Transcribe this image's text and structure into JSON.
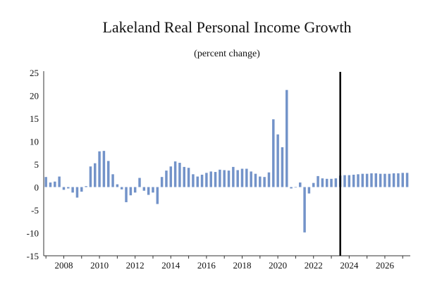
{
  "chart_data": {
    "type": "bar",
    "title": "Lakeland Real Personal Income Growth",
    "subtitle": "(percent change)",
    "xlabel": "",
    "ylabel": "",
    "ylim": [
      -15,
      25
    ],
    "yticks": [
      "25",
      "20",
      "15",
      "10",
      "5",
      "0",
      "-5",
      "-10",
      "-15"
    ],
    "xticks": [
      "2008",
      "2010",
      "2012",
      "2014",
      "2016",
      "2018",
      "2020",
      "2022",
      "2024",
      "2026"
    ],
    "x_start": 2007.0,
    "x_step": 0.25,
    "forecast_start": 2023.5,
    "bar_color": "#7393c9",
    "forecast_line_color": "#000000",
    "values": [
      2.2,
      1.0,
      1.2,
      2.3,
      -0.6,
      -0.3,
      -1.2,
      -2.3,
      -1.0,
      0.2,
      4.5,
      5.2,
      7.8,
      7.9,
      5.7,
      2.8,
      0.6,
      -0.5,
      -3.3,
      -1.8,
      -1.2,
      2.0,
      -0.8,
      -1.7,
      -1.2,
      -3.7,
      2.2,
      3.6,
      4.5,
      5.6,
      5.3,
      4.4,
      4.2,
      2.8,
      2.3,
      2.7,
      3.1,
      3.4,
      3.3,
      3.8,
      3.7,
      3.6,
      4.4,
      3.7,
      4.0,
      4.0,
      3.4,
      2.9,
      2.3,
      2.2,
      3.2,
      14.8,
      11.5,
      8.7,
      21.2,
      -0.3,
      -0.1,
      1.0,
      -9.9,
      -1.4,
      0.9,
      2.4,
      1.9,
      1.8,
      1.8,
      1.9,
      2.5,
      2.6,
      2.6,
      2.7,
      2.8,
      2.9,
      2.9,
      3.0,
      3.0,
      2.9,
      2.9,
      2.9,
      3.0,
      3.0,
      3.1,
      3.1
    ]
  }
}
